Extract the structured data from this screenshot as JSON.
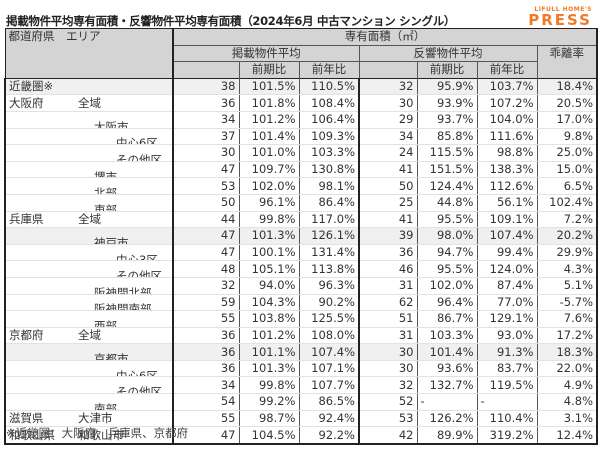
{
  "title": "掲載物件平均専有面積・反響物件平均専有面積（2024年6月 中古マンション シングル）",
  "logo": {
    "top": "LIFULL HOME'S",
    "main": "PRESS",
    "color": "#f07a2a"
  },
  "header": {
    "region": "都道府県　エリア",
    "area_group": "専有面積（㎡）",
    "listed": "掲載物件平均",
    "response": "反響物件平均",
    "gap": "乖離率",
    "qoq": "前期比",
    "yoy": "前年比"
  },
  "rows": [
    {
      "pref": "近畿圏※",
      "area": "",
      "indent": 0,
      "l": "38",
      "lq": "101.5%",
      "ly": "110.5%",
      "r": "32",
      "rq": "95.9%",
      "ry": "103.7%",
      "gap": "18.4%"
    },
    {
      "pref": "大阪府",
      "area": "全域",
      "indent": 1,
      "l": "36",
      "lq": "101.8%",
      "ly": "108.4%",
      "r": "30",
      "rq": "93.9%",
      "ry": "107.2%",
      "gap": "20.5%"
    },
    {
      "pref": "",
      "area": "大阪市",
      "indent": 2,
      "l": "34",
      "lq": "101.2%",
      "ly": "106.4%",
      "r": "29",
      "rq": "93.7%",
      "ry": "104.0%",
      "gap": "17.0%"
    },
    {
      "pref": "",
      "area": "中心6区",
      "indent": 3,
      "l": "37",
      "lq": "101.4%",
      "ly": "109.3%",
      "r": "34",
      "rq": "85.8%",
      "ry": "111.6%",
      "gap": "9.8%"
    },
    {
      "pref": "",
      "area": "その他区",
      "indent": 3,
      "l": "30",
      "lq": "101.0%",
      "ly": "103.3%",
      "r": "24",
      "rq": "115.5%",
      "ry": "98.8%",
      "gap": "25.0%"
    },
    {
      "pref": "",
      "area": "堺市",
      "indent": 2,
      "l": "47",
      "lq": "109.7%",
      "ly": "130.8%",
      "r": "41",
      "rq": "151.5%",
      "ry": "138.3%",
      "gap": "15.0%"
    },
    {
      "pref": "",
      "area": "北部",
      "indent": 2,
      "l": "53",
      "lq": "102.0%",
      "ly": "98.1%",
      "r": "50",
      "rq": "124.4%",
      "ry": "112.6%",
      "gap": "6.5%"
    },
    {
      "pref": "",
      "area": "東部",
      "indent": 2,
      "l": "50",
      "lq": "96.1%",
      "ly": "86.4%",
      "r": "25",
      "rq": "44.8%",
      "ry": "56.1%",
      "gap": "102.4%"
    },
    {
      "pref": "兵庫県",
      "area": "全域",
      "indent": 1,
      "l": "44",
      "lq": "99.8%",
      "ly": "117.0%",
      "r": "41",
      "rq": "95.5%",
      "ry": "109.1%",
      "gap": "7.2%"
    },
    {
      "pref": "",
      "area": "神戸市",
      "indent": 2,
      "l": "47",
      "lq": "101.3%",
      "ly": "126.1%",
      "r": "39",
      "rq": "98.0%",
      "ry": "107.4%",
      "gap": "20.2%"
    },
    {
      "pref": "",
      "area": "中心3区",
      "indent": 3,
      "l": "47",
      "lq": "100.1%",
      "ly": "131.4%",
      "r": "36",
      "rq": "94.7%",
      "ry": "99.4%",
      "gap": "29.9%"
    },
    {
      "pref": "",
      "area": "その他区",
      "indent": 3,
      "l": "48",
      "lq": "105.1%",
      "ly": "113.8%",
      "r": "46",
      "rq": "95.5%",
      "ry": "124.0%",
      "gap": "4.3%"
    },
    {
      "pref": "",
      "area": "阪神間北部",
      "indent": 2,
      "l": "32",
      "lq": "94.0%",
      "ly": "96.3%",
      "r": "31",
      "rq": "102.0%",
      "ry": "87.4%",
      "gap": "5.1%"
    },
    {
      "pref": "",
      "area": "阪神間南部",
      "indent": 2,
      "l": "59",
      "lq": "104.3%",
      "ly": "90.2%",
      "r": "62",
      "rq": "96.4%",
      "ry": "77.0%",
      "gap": "-5.7%"
    },
    {
      "pref": "",
      "area": "西部",
      "indent": 2,
      "l": "55",
      "lq": "103.8%",
      "ly": "125.5%",
      "r": "51",
      "rq": "86.7%",
      "ry": "129.1%",
      "gap": "7.6%"
    },
    {
      "pref": "京都府",
      "area": "全域",
      "indent": 1,
      "l": "36",
      "lq": "101.2%",
      "ly": "108.0%",
      "r": "31",
      "rq": "103.3%",
      "ry": "93.0%",
      "gap": "17.2%"
    },
    {
      "pref": "",
      "area": "京都市",
      "indent": 2,
      "l": "36",
      "lq": "101.1%",
      "ly": "107.4%",
      "r": "30",
      "rq": "101.4%",
      "ry": "91.3%",
      "gap": "18.3%"
    },
    {
      "pref": "",
      "area": "中心6区",
      "indent": 3,
      "l": "36",
      "lq": "101.3%",
      "ly": "107.1%",
      "r": "30",
      "rq": "93.6%",
      "ry": "83.7%",
      "gap": "22.0%"
    },
    {
      "pref": "",
      "area": "その他区",
      "indent": 3,
      "l": "34",
      "lq": "99.8%",
      "ly": "107.7%",
      "r": "32",
      "rq": "132.7%",
      "ry": "119.5%",
      "gap": "4.9%"
    },
    {
      "pref": "",
      "area": "南部",
      "indent": 2,
      "l": "54",
      "lq": "99.2%",
      "ly": "86.5%",
      "r": "52",
      "rq": "-",
      "ry": "-",
      "gap": "4.8%"
    },
    {
      "pref": "滋賀県",
      "area": "大津市",
      "indent": 1,
      "l": "55",
      "lq": "98.7%",
      "ly": "92.4%",
      "r": "53",
      "rq": "126.2%",
      "ry": "110.4%",
      "gap": "3.1%"
    },
    {
      "pref": "和歌山県",
      "area": "和歌山市",
      "indent": 1,
      "l": "47",
      "lq": "104.5%",
      "ly": "92.2%",
      "r": "42",
      "rq": "89.9%",
      "ry": "319.2%",
      "gap": "12.4%"
    }
  ],
  "footnote": "※近畿圏：大阪府、兵庫県、京都府"
}
